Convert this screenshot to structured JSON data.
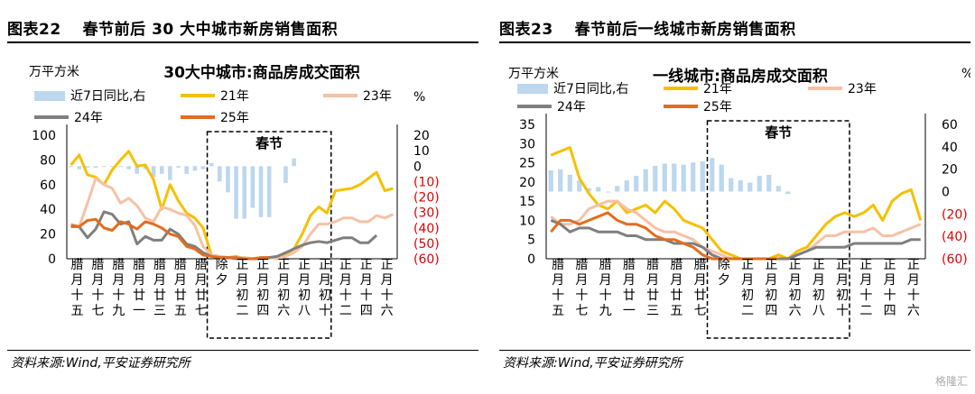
{
  "x_labels": [
    "腊月十五",
    "腊月十七",
    "腊月十九",
    "腊月廿一",
    "腊月廿三",
    "腊月廿五",
    "腊月廿七",
    "除夕",
    "正月初二",
    "正月初四",
    "正月初六",
    "正月初八",
    "正月初十",
    "正月十二",
    "正月十四",
    "正月十六"
  ],
  "colors": {
    "bar": "#bdd7ee",
    "y21": "#f5c000",
    "y23": "#f6c1a6",
    "y24": "#7f7f7f",
    "y25": "#e46c1e",
    "neg": "#e00000"
  },
  "panels": [
    {
      "fig_number": "图表22",
      "fig_title": "春节前后 30 大中城市新房销售面积",
      "source": "资料来源:Wind,平安证券研究所",
      "chart_data": {
        "type": "line",
        "title": "30大中城市:商品房成交面积",
        "unit_left": "万平方米",
        "unit_right": "%",
        "festival_label": "春节",
        "festival_range": [
          17,
          32
        ],
        "ylim_left": [
          0,
          100
        ],
        "yticks_left": [
          0,
          20,
          40,
          60,
          80,
          100
        ],
        "ylim_right": [
          -60,
          20
        ],
        "yticks_right": [
          20,
          10,
          0,
          -10,
          -20,
          -30,
          -40,
          -50,
          -60
        ],
        "ytick_labels_right": [
          "20",
          "10",
          "0",
          "(10)",
          "(20)",
          "(30)",
          "(40)",
          "(50)",
          "(60)"
        ],
        "legend": [
          "近7日同比,右",
          "21年",
          "23年",
          "24年",
          "25年"
        ],
        "bar_series": {
          "name": "近7日同比,右",
          "values": [
            0,
            -2,
            -1,
            -1,
            0,
            0,
            0,
            -2,
            -5,
            -2,
            -7,
            -5,
            -9,
            -1,
            -5,
            -3,
            -2,
            2,
            -10,
            -17,
            -34,
            -34,
            -27,
            -33,
            -33,
            null,
            -11,
            5,
            null,
            null,
            null,
            null,
            null,
            null,
            null,
            null,
            null,
            null,
            null,
            null,
            null,
            null,
            null,
            null,
            null,
            null,
            null
          ]
        },
        "series": [
          {
            "name": "21年",
            "values": [
              76,
              84,
              68,
              66,
              60,
              72,
              80,
              87,
              75,
              76,
              64,
              40,
              60,
              47,
              37,
              33,
              25,
              3,
              2,
              1,
              2,
              0,
              0,
              0,
              1,
              0,
              3,
              8,
              20,
              35,
              42,
              37,
              55,
              56,
              57,
              60,
              65,
              70,
              55,
              57
            ]
          },
          {
            "name": "23年",
            "values": [
              28,
              26,
              45,
              65,
              60,
              57,
              45,
              49,
              43,
              33,
              30,
              42,
              40,
              37,
              35,
              27,
              10,
              3,
              2,
              1,
              1,
              1,
              0,
              0,
              1,
              0,
              2,
              5,
              10,
              20,
              28,
              28,
              30,
              33,
              33,
              30,
              30,
              35,
              33,
              36
            ]
          },
          {
            "name": "24年",
            "values": [
              26,
              26,
              17,
              24,
              38,
              36,
              28,
              30,
              12,
              18,
              15,
              15,
              24,
              20,
              12,
              10,
              5,
              2,
              1,
              1,
              0,
              0,
              0,
              0,
              1,
              2,
              5,
              8,
              11,
              13,
              14,
              13,
              15,
              17,
              17,
              13,
              13,
              19
            ]
          },
          {
            "name": "25年",
            "values": [
              27,
              26,
              31,
              32,
              25,
              23,
              30,
              28,
              24,
              30,
              28,
              25,
              20,
              18,
              10,
              8,
              3,
              2,
              1,
              1,
              1,
              0,
              0,
              1,
              1
            ]
          }
        ]
      }
    },
    {
      "fig_number": "图表23",
      "fig_title": "春节前后一线城市新房销售面积",
      "source": "资料来源:Wind,平安证券研究所",
      "chart_data": {
        "type": "line",
        "title": "一线城市:商品房成交面积",
        "unit_left": "万平方米",
        "unit_right": "%",
        "festival_label": "春节",
        "festival_range": [
          17,
          32
        ],
        "ylim_left": [
          0,
          35
        ],
        "yticks_left": [
          0,
          5,
          10,
          15,
          20,
          25,
          30,
          35
        ],
        "ylim_right": [
          -60,
          60
        ],
        "yticks_right": [
          60,
          40,
          20,
          0,
          -20,
          -40,
          -60
        ],
        "ytick_labels_right": [
          "60",
          "40",
          "20",
          "0",
          "(20)",
          "(40)",
          "(60)"
        ],
        "legend": [
          "近7日同比,右",
          "21年",
          "23年",
          "24年",
          "25年"
        ],
        "bar_series": {
          "name": "近7日同比,右",
          "values": [
            19,
            20,
            15,
            10,
            3,
            4,
            0,
            5,
            10,
            14,
            20,
            23,
            25,
            25,
            24,
            26,
            27,
            30,
            24,
            12,
            10,
            8,
            14,
            15,
            5,
            -2,
            null,
            null,
            null,
            null,
            null,
            null,
            null,
            null,
            null,
            null,
            null,
            null,
            null,
            null
          ]
        },
        "series": [
          {
            "name": "21年",
            "values": [
              27,
              28,
              29,
              21,
              17,
              14,
              13,
              15,
              12,
              13,
              14,
              12,
              15,
              13,
              10,
              9,
              8,
              5,
              2,
              1,
              0,
              0,
              0,
              0,
              1,
              0,
              2,
              3,
              6,
              9,
              11,
              12,
              11,
              12,
              14,
              10,
              15,
              17,
              18,
              10
            ]
          },
          {
            "name": "23年",
            "values": [
              11,
              9,
              9,
              10,
              13,
              14,
              15,
              15,
              13,
              12,
              10,
              8,
              7,
              7,
              6,
              5,
              3,
              2,
              1,
              0,
              0,
              0,
              0,
              0,
              0,
              0,
              1,
              2,
              4,
              6,
              6,
              7,
              7,
              7,
              8,
              6,
              6,
              7,
              8,
              9
            ]
          },
          {
            "name": "24年",
            "values": [
              10,
              9,
              7,
              8,
              8,
              7,
              7,
              7,
              6,
              6,
              5,
              5,
              5,
              4,
              4,
              4,
              3,
              1,
              0,
              0,
              0,
              0,
              0,
              0,
              0,
              0,
              1,
              2,
              3,
              3,
              3,
              3,
              4,
              4,
              4,
              4,
              4,
              4,
              5,
              5
            ]
          },
          {
            "name": "25年",
            "values": [
              7,
              10,
              10,
              9,
              10,
              11,
              12,
              10,
              9,
              9,
              8,
              6,
              5,
              5,
              4,
              3,
              1,
              0,
              0,
              0,
              0,
              0,
              0,
              0,
              0
            ]
          }
        ]
      }
    }
  ],
  "watermark": "格隆汇"
}
